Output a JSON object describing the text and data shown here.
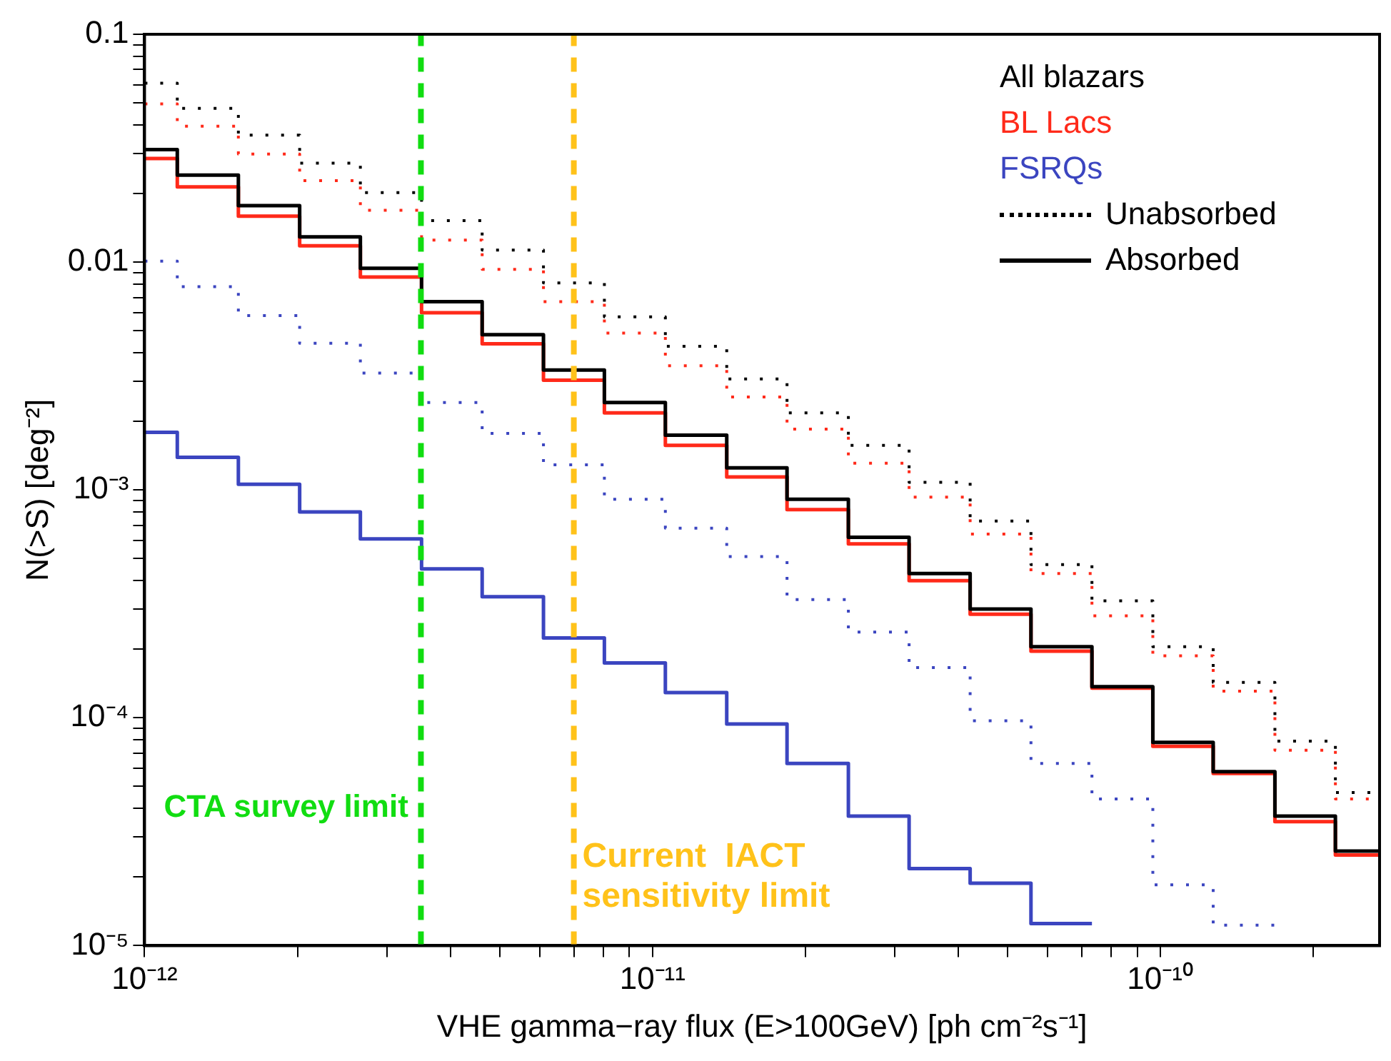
{
  "chart_data": {
    "type": "step",
    "xlabel": "VHE gamma−ray flux (E>100GeV) [ph cm⁻²s⁻¹]",
    "ylabel": "N(>S) [deg⁻²]",
    "log": "xy",
    "grid": false,
    "marker": "none",
    "legend": "top right",
    "annotations": [
      "Unabsorbed",
      "Absorbed",
      {
        "text": "CTA survey limit",
        "x": 3.5e-12,
        "y": 4e-05
      },
      {
        "text": "Current  IACT sensitivity limit",
        "x": 7e-12,
        "y": 2e-05
      }
    ],
    "xlim": [
      1e-12,
      2.7e-10
    ],
    "ylim": [
      1e-05,
      0.1
    ],
    "xticks": [
      {
        "value": 1e-12,
        "label": "10⁻¹²"
      },
      {
        "value": 2e-12,
        "label": null
      },
      {
        "value": 3e-12,
        "label": null
      },
      {
        "value": 4e-12,
        "label": null
      },
      {
        "value": 5e-12,
        "label": null
      },
      {
        "value": 6e-12,
        "label": null
      },
      {
        "value": 7e-12,
        "label": null
      },
      {
        "value": 8e-12,
        "label": null
      },
      {
        "value": 9e-12,
        "label": null
      },
      {
        "value": 1e-11,
        "label": "10⁻¹¹"
      },
      {
        "value": 2e-11,
        "label": null
      },
      {
        "value": 3e-11,
        "label": null
      },
      {
        "value": 4e-11,
        "label": null
      },
      {
        "value": 5e-11,
        "label": null
      },
      {
        "value": 6e-11,
        "label": null
      },
      {
        "value": 7e-11,
        "label": null
      },
      {
        "value": 8e-11,
        "label": null
      },
      {
        "value": 9e-11,
        "label": null
      },
      {
        "value": 1e-10,
        "label": "10⁻¹⁰"
      },
      {
        "value": 2e-10,
        "label": null
      }
    ],
    "yticks": [
      {
        "value": 1e-05,
        "label": "10⁻⁵"
      },
      {
        "value": 2e-05,
        "label": null
      },
      {
        "value": 3e-05,
        "label": null
      },
      {
        "value": 4e-05,
        "label": null
      },
      {
        "value": 5e-05,
        "label": null
      },
      {
        "value": 6e-05,
        "label": null
      },
      {
        "value": 7e-05,
        "label": null
      },
      {
        "value": 8e-05,
        "label": null
      },
      {
        "value": 9e-05,
        "label": null
      },
      {
        "value": 0.0001,
        "label": "10⁻⁴"
      },
      {
        "value": 0.0002,
        "label": null
      },
      {
        "value": 0.0003,
        "label": null
      },
      {
        "value": 0.0004,
        "label": null
      },
      {
        "value": 0.0005,
        "label": null
      },
      {
        "value": 0.0006,
        "label": null
      },
      {
        "value": 0.0007,
        "label": null
      },
      {
        "value": 0.0008,
        "label": null
      },
      {
        "value": 0.0009,
        "label": null
      },
      {
        "value": 0.001,
        "label": "10⁻³"
      },
      {
        "value": 0.002,
        "label": null
      },
      {
        "value": 0.003,
        "label": null
      },
      {
        "value": 0.004,
        "label": null
      },
      {
        "value": 0.005,
        "label": null
      },
      {
        "value": 0.006,
        "label": null
      },
      {
        "value": 0.007,
        "label": null
      },
      {
        "value": 0.008,
        "label": null
      },
      {
        "value": 0.009,
        "label": null
      },
      {
        "value": 0.01,
        "label": "0.01"
      },
      {
        "value": 0.02,
        "label": null
      },
      {
        "value": 0.03,
        "label": null
      },
      {
        "value": 0.04,
        "label": null
      },
      {
        "value": 0.05,
        "label": null
      },
      {
        "value": 0.06,
        "label": null
      },
      {
        "value": 0.07,
        "label": null
      },
      {
        "value": 0.08,
        "label": null
      },
      {
        "value": 0.09,
        "label": null
      },
      {
        "value": 0.1,
        "label": "0.1"
      }
    ],
    "x": [
      1e-12,
      1.16e-12,
      1.53e-12,
      2.02e-12,
      2.66e-12,
      3.51e-12,
      4.62e-12,
      6.1e-12,
      8.04e-12,
      1.06e-11,
      1.4e-11,
      1.84e-11,
      2.43e-11,
      3.2e-11,
      4.22e-11,
      5.56e-11,
      7.33e-11,
      9.66e-11,
      1.27e-10,
      1.68e-10,
      2.21e-10,
      2.7e-10
    ],
    "ref_lines": [
      {
        "axis": "x",
        "value": 3.5e-12,
        "color": "#11dd11",
        "line_style": "dashed"
      },
      {
        "axis": "x",
        "value": 7e-12,
        "color": "#ffc21a",
        "line_style": "dashed"
      }
    ],
    "series": [
      {
        "color": "#000000",
        "line_style": "dotted",
        "values": [
          0.061,
          0.0473,
          0.0361,
          0.0272,
          0.0202,
          0.0152,
          0.0113,
          0.0081,
          0.00575,
          0.00427,
          0.00307,
          0.00218,
          0.00157,
          0.00108,
          0.00073,
          0.00047,
          0.000326,
          0.000205,
          0.000143,
          7.9e-05,
          4.7e-05,
          4.7e-05
        ]
      },
      {
        "color": "#ff2a1a",
        "line_style": "dotted",
        "values": [
          0.0495,
          0.0395,
          0.0298,
          0.0228,
          0.0169,
          0.0125,
          0.0093,
          0.0067,
          0.00488,
          0.00351,
          0.00256,
          0.00185,
          0.00131,
          0.00093,
          0.00064,
          0.00043,
          0.00028,
          0.000187,
          0.000131,
          7.2e-05,
          4.4e-05,
          4.4e-05
        ]
      },
      {
        "color": "#3b45c0",
        "line_style": "dotted",
        "values": [
          0.0101,
          0.0078,
          0.00583,
          0.0044,
          0.00326,
          0.00242,
          0.00177,
          0.00129,
          0.00091,
          0.00068,
          0.00051,
          0.00033,
          0.000238,
          0.000166,
          9.7e-05,
          6.3e-05,
          4.4e-05,
          1.85e-05,
          1.23e-05,
          1.23e-05,
          null,
          null
        ]
      },
      {
        "name": "All blazars",
        "color": "#000000",
        "line_style": "solid",
        "values": [
          0.0312,
          0.0241,
          0.0177,
          0.0129,
          0.0094,
          0.0067,
          0.0048,
          0.00336,
          0.00242,
          0.00174,
          0.00125,
          0.00091,
          0.00062,
          0.00043,
          0.0003,
          0.000205,
          0.000137,
          7.8e-05,
          5.8e-05,
          3.7e-05,
          2.6e-05,
          2.6e-05
        ]
      },
      {
        "name": "BL Lacs",
        "color": "#ff2a1a",
        "line_style": "solid",
        "values": [
          0.0285,
          0.0214,
          0.0159,
          0.0118,
          0.0086,
          0.006,
          0.00438,
          0.00303,
          0.00218,
          0.00157,
          0.00114,
          0.00082,
          0.00058,
          0.0004,
          0.000285,
          0.000196,
          0.000135,
          7.5e-05,
          5.7e-05,
          3.5e-05,
          2.5e-05,
          2.5e-05
        ]
      },
      {
        "name": "FSRQs",
        "color": "#3b45c0",
        "line_style": "solid",
        "values": [
          0.00179,
          0.00139,
          0.00106,
          0.0008,
          0.00061,
          0.00045,
          0.00034,
          0.000224,
          0.000174,
          0.000129,
          9.4e-05,
          6.3e-05,
          3.7e-05,
          2.18e-05,
          1.88e-05,
          1.25e-05,
          1.25e-05,
          null,
          null,
          null,
          null,
          null
        ]
      }
    ]
  }
}
